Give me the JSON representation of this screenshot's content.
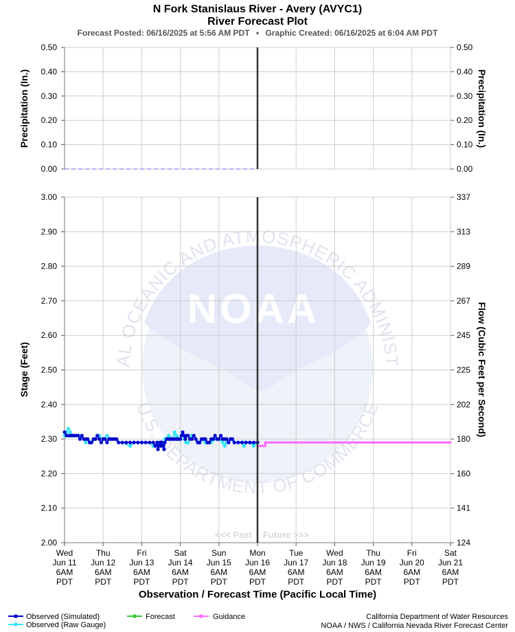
{
  "header": {
    "title": "N Fork Stanislaus River - Avery (AVYC1)",
    "subtitle": "River Forecast Plot",
    "posted": "Forecast Posted: 06/16/2025 at 5:56 AM PDT",
    "separator": "•",
    "created": "Graphic Created: 06/16/2025 at 6:04 AM PDT"
  },
  "watermark": {
    "logo_text": "NOAA",
    "ring_top": "NATIONAL OCEANIC AND ATMOSPHERIC ADMINISTRATION",
    "ring_bottom": "U.S. DEPARTMENT OF COMMERCE"
  },
  "precip_panel": {
    "ylabel_left": "Precipitation (In.)",
    "ylabel_right": "Precipitation (In.)",
    "ticks": [
      "0.50",
      "0.40",
      "0.30",
      "0.20",
      "0.10",
      "0.00"
    ]
  },
  "stage_panel": {
    "ylabel_left": "Stage (Feet)",
    "ylabel_right": "Flow (Cubic Feet per Second)",
    "stage_ticks": [
      "3.00",
      "2.90",
      "2.80",
      "2.70",
      "2.60",
      "2.50",
      "2.40",
      "2.30",
      "2.20",
      "2.10",
      "2.00"
    ],
    "flow_ticks": [
      "337",
      "313",
      "289",
      "267",
      "245",
      "225",
      "202",
      "180",
      "160",
      "141",
      "124"
    ],
    "past_label": "<<< Past",
    "future_label": "Future >>>"
  },
  "xaxis": {
    "title": "Observation / Forecast Time (Pacific Local Time)",
    "ticks": [
      {
        "day": "Wed",
        "date": "Jun 11",
        "time": "6AM",
        "tz": "PDT"
      },
      {
        "day": "Thu",
        "date": "Jun 12",
        "time": "6AM",
        "tz": "PDT"
      },
      {
        "day": "Fri",
        "date": "Jun 13",
        "time": "6AM",
        "tz": "PDT"
      },
      {
        "day": "Sat",
        "date": "Jun 14",
        "time": "6AM",
        "tz": "PDT"
      },
      {
        "day": "Sun",
        "date": "Jun 15",
        "time": "6AM",
        "tz": "PDT"
      },
      {
        "day": "Mon",
        "date": "Jun 16",
        "time": "6AM",
        "tz": "PDT"
      },
      {
        "day": "Tue",
        "date": "Jun 17",
        "time": "6AM",
        "tz": "PDT"
      },
      {
        "day": "Wed",
        "date": "Jun 18",
        "time": "6AM",
        "tz": "PDT"
      },
      {
        "day": "Thu",
        "date": "Jun 19",
        "time": "6AM",
        "tz": "PDT"
      },
      {
        "day": "Fri",
        "date": "Jun 20",
        "time": "6AM",
        "tz": "PDT"
      },
      {
        "day": "Sat",
        "date": "Jun 21",
        "time": "6AM",
        "tz": "PDT"
      }
    ]
  },
  "legend": [
    {
      "label": "Observed (Simulated)",
      "color": "#0000cc"
    },
    {
      "label": "Observed (Raw Gauge)",
      "color": "#33e6f2"
    },
    {
      "label": "Forecast",
      "color": "#33cc33"
    },
    {
      "label": "Guidance",
      "color": "#ff66ff"
    }
  ],
  "credits": {
    "line1": "California Department of Water Resources",
    "line2": "NOAA / NWS / California Nevada River Forecast Center"
  },
  "chart_data": {
    "type": "line",
    "x_unit": "days after Wed Jun 11 6AM PDT",
    "now_x": 5,
    "precipitation": {
      "ylim": [
        0,
        0.5
      ],
      "values": [
        [
          0,
          0.0
        ],
        [
          5,
          0.0
        ]
      ]
    },
    "stage": {
      "ylim": [
        2.0,
        3.0
      ],
      "flow_ticks_cfs": [
        337,
        313,
        289,
        267,
        245,
        225,
        202,
        180,
        160,
        141,
        124
      ],
      "series": [
        {
          "name": "Observed (Simulated)",
          "color": "#0000cc",
          "points": [
            [
              0.0,
              2.32
            ],
            [
              0.05,
              2.31
            ],
            [
              0.1,
              2.31
            ],
            [
              0.15,
              2.31
            ],
            [
              0.2,
              2.31
            ],
            [
              0.25,
              2.31
            ],
            [
              0.3,
              2.31
            ],
            [
              0.35,
              2.31
            ],
            [
              0.4,
              2.3
            ],
            [
              0.45,
              2.31
            ],
            [
              0.5,
              2.3
            ],
            [
              0.55,
              2.3
            ],
            [
              0.6,
              2.3
            ],
            [
              0.65,
              2.29
            ],
            [
              0.7,
              2.29
            ],
            [
              0.75,
              2.3
            ],
            [
              0.8,
              2.3
            ],
            [
              0.85,
              2.31
            ],
            [
              0.9,
              2.3
            ],
            [
              0.95,
              2.29
            ],
            [
              1.0,
              2.3
            ],
            [
              1.05,
              2.3
            ],
            [
              1.1,
              2.29
            ],
            [
              1.15,
              2.3
            ],
            [
              1.2,
              2.3
            ],
            [
              1.25,
              2.3
            ],
            [
              1.3,
              2.3
            ],
            [
              1.35,
              2.3
            ],
            [
              1.4,
              2.29
            ],
            [
              1.5,
              2.29
            ],
            [
              1.6,
              2.29
            ],
            [
              1.7,
              2.29
            ],
            [
              1.8,
              2.29
            ],
            [
              1.9,
              2.29
            ],
            [
              2.0,
              2.29
            ],
            [
              2.1,
              2.29
            ],
            [
              2.2,
              2.29
            ],
            [
              2.3,
              2.29
            ],
            [
              2.35,
              2.28
            ],
            [
              2.4,
              2.29
            ],
            [
              2.42,
              2.27
            ],
            [
              2.45,
              2.28
            ],
            [
              2.48,
              2.29
            ],
            [
              2.5,
              2.28
            ],
            [
              2.52,
              2.29
            ],
            [
              2.55,
              2.28
            ],
            [
              2.58,
              2.27
            ],
            [
              2.6,
              2.29
            ],
            [
              2.65,
              2.3
            ],
            [
              2.7,
              2.3
            ],
            [
              2.75,
              2.3
            ],
            [
              2.8,
              2.3
            ],
            [
              2.85,
              2.3
            ],
            [
              2.9,
              2.3
            ],
            [
              2.95,
              2.3
            ],
            [
              3.0,
              2.3
            ],
            [
              3.03,
              2.31
            ],
            [
              3.06,
              2.32
            ],
            [
              3.1,
              2.31
            ],
            [
              3.13,
              2.3
            ],
            [
              3.16,
              2.31
            ],
            [
              3.2,
              2.31
            ],
            [
              3.25,
              2.3
            ],
            [
              3.3,
              2.3
            ],
            [
              3.35,
              2.31
            ],
            [
              3.4,
              2.3
            ],
            [
              3.45,
              2.29
            ],
            [
              3.5,
              2.29
            ],
            [
              3.55,
              2.3
            ],
            [
              3.6,
              2.3
            ],
            [
              3.65,
              2.3
            ],
            [
              3.7,
              2.29
            ],
            [
              3.75,
              2.29
            ],
            [
              3.8,
              2.3
            ],
            [
              3.85,
              2.3
            ],
            [
              3.9,
              2.31
            ],
            [
              3.95,
              2.3
            ],
            [
              4.0,
              2.3
            ],
            [
              4.05,
              2.31
            ],
            [
              4.1,
              2.3
            ],
            [
              4.15,
              2.3
            ],
            [
              4.2,
              2.3
            ],
            [
              4.25,
              2.29
            ],
            [
              4.3,
              2.3
            ],
            [
              4.35,
              2.3
            ],
            [
              4.4,
              2.29
            ],
            [
              4.5,
              2.29
            ],
            [
              4.6,
              2.29
            ],
            [
              4.7,
              2.29
            ],
            [
              4.8,
              2.29
            ],
            [
              4.9,
              2.29
            ],
            [
              5.0,
              2.29
            ]
          ]
        },
        {
          "name": "Observed (Raw Gauge)",
          "color": "#33e6f2",
          "points": [
            [
              0.0,
              2.31
            ],
            [
              0.05,
              2.32
            ],
            [
              0.1,
              2.33
            ],
            [
              0.15,
              2.32
            ],
            [
              0.2,
              2.31
            ],
            [
              0.3,
              2.31
            ],
            [
              0.4,
              2.31
            ],
            [
              0.5,
              2.3
            ],
            [
              0.55,
              2.29
            ],
            [
              0.6,
              2.3
            ],
            [
              0.7,
              2.29
            ],
            [
              0.8,
              2.3
            ],
            [
              0.85,
              2.31
            ],
            [
              0.9,
              2.31
            ],
            [
              1.0,
              2.3
            ],
            [
              1.1,
              2.31
            ],
            [
              1.2,
              2.3
            ],
            [
              1.3,
              2.3
            ],
            [
              1.4,
              2.29
            ],
            [
              1.5,
              2.29
            ],
            [
              1.7,
              2.28
            ],
            [
              1.8,
              2.29
            ],
            [
              2.0,
              2.29
            ],
            [
              2.2,
              2.29
            ],
            [
              2.3,
              2.28
            ],
            [
              2.4,
              2.28
            ],
            [
              2.45,
              2.29
            ],
            [
              2.5,
              2.29
            ],
            [
              2.55,
              2.28
            ],
            [
              2.6,
              2.3
            ],
            [
              2.7,
              2.31
            ],
            [
              2.8,
              2.3
            ],
            [
              2.85,
              2.32
            ],
            [
              2.9,
              2.31
            ],
            [
              3.0,
              2.3
            ],
            [
              3.1,
              2.3
            ],
            [
              3.15,
              2.29
            ],
            [
              3.2,
              2.29
            ],
            [
              3.3,
              2.31
            ],
            [
              3.4,
              2.3
            ],
            [
              3.5,
              2.29
            ],
            [
              3.6,
              2.3
            ],
            [
              3.65,
              2.29
            ],
            [
              3.7,
              2.29
            ],
            [
              3.8,
              2.29
            ],
            [
              3.9,
              2.3
            ],
            [
              4.0,
              2.3
            ],
            [
              4.1,
              2.29
            ],
            [
              4.15,
              2.28
            ],
            [
              4.2,
              2.29
            ],
            [
              4.3,
              2.3
            ],
            [
              4.4,
              2.29
            ],
            [
              4.5,
              2.29
            ],
            [
              4.6,
              2.29
            ],
            [
              4.65,
              2.28
            ],
            [
              4.7,
              2.29
            ],
            [
              4.8,
              2.29
            ],
            [
              4.9,
              2.28
            ],
            [
              5.0,
              2.29
            ]
          ]
        },
        {
          "name": "Guidance",
          "color": "#ff66ff",
          "points": [
            [
              5.0,
              2.28
            ],
            [
              5.2,
              2.28
            ],
            [
              5.2,
              2.29
            ],
            [
              6.0,
              2.29
            ],
            [
              7.0,
              2.29
            ],
            [
              8.0,
              2.29
            ],
            [
              9.0,
              2.29
            ],
            [
              10.0,
              2.29
            ]
          ]
        }
      ]
    }
  }
}
